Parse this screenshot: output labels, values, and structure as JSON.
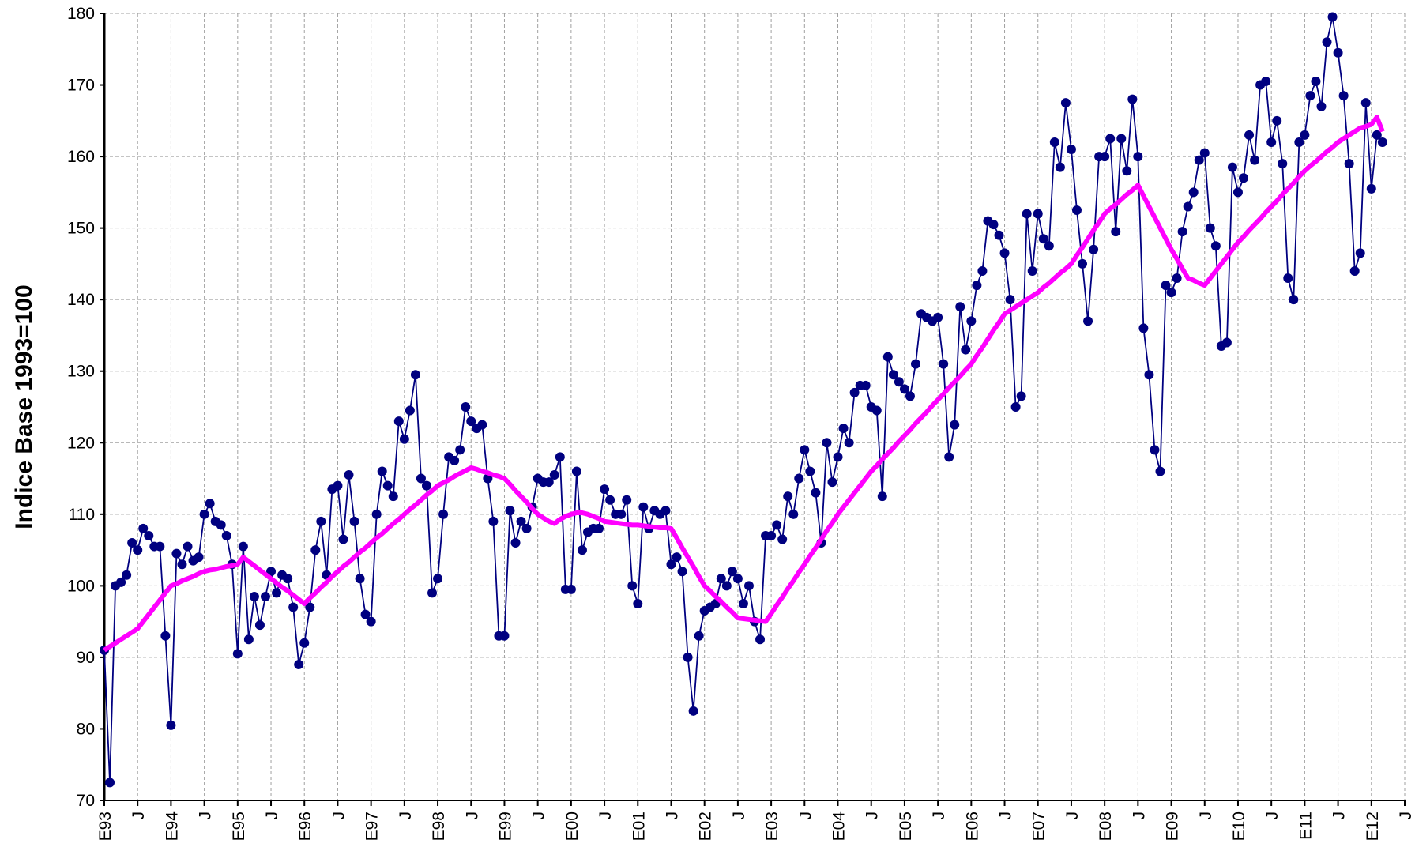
{
  "chart_data": {
    "type": "line",
    "y_label": "Indice Base 1993=100",
    "categories": [
      "E93",
      null,
      null,
      null,
      null,
      null,
      "J",
      null,
      null,
      null,
      null,
      null,
      "E94",
      null,
      null,
      null,
      null,
      null,
      "J",
      null,
      null,
      null,
      null,
      null,
      "E95",
      null,
      null,
      null,
      null,
      null,
      "J",
      null,
      null,
      null,
      null,
      null,
      "E96",
      null,
      null,
      null,
      null,
      null,
      "J",
      null,
      null,
      null,
      null,
      null,
      "E97",
      null,
      null,
      null,
      null,
      null,
      "J",
      null,
      null,
      null,
      null,
      null,
      "E98",
      null,
      null,
      null,
      null,
      null,
      "J",
      null,
      null,
      null,
      null,
      null,
      "E99",
      null,
      null,
      null,
      null,
      null,
      "J",
      null,
      null,
      null,
      null,
      null,
      "E00",
      null,
      null,
      null,
      null,
      null,
      "J",
      null,
      null,
      null,
      null,
      null,
      "E01",
      null,
      null,
      null,
      null,
      null,
      "J",
      null,
      null,
      null,
      null,
      null,
      "E02",
      null,
      null,
      null,
      null,
      null,
      "J",
      null,
      null,
      null,
      null,
      null,
      "E03",
      null,
      null,
      null,
      null,
      null,
      "J",
      null,
      null,
      null,
      null,
      null,
      "E04",
      null,
      null,
      null,
      null,
      null,
      "J",
      null,
      null,
      null,
      null,
      null,
      "E05",
      null,
      null,
      null,
      null,
      null,
      "J",
      null,
      null,
      null,
      null,
      null,
      "E06",
      null,
      null,
      null,
      null,
      null,
      "J",
      null,
      null,
      null,
      null,
      null,
      "E07",
      null,
      null,
      null,
      null,
      null,
      "J",
      null,
      null,
      null,
      null,
      null,
      "E08",
      null,
      null,
      null,
      null,
      null,
      "J",
      null,
      null,
      null,
      null,
      null,
      "E09",
      null,
      null,
      null,
      null,
      null,
      "J",
      null,
      null,
      null,
      null,
      null,
      "E10",
      null,
      null,
      null,
      null,
      null,
      "J",
      null,
      null,
      null,
      null,
      null,
      "E11",
      null,
      null,
      null,
      null,
      null,
      "J",
      null,
      null,
      null,
      null,
      null,
      "E12",
      null,
      null,
      null,
      null,
      null,
      "J"
    ],
    "series": [
      {
        "color": "#000080",
        "markers": true,
        "values": [
          91,
          72.5,
          100,
          100.5,
          101.5,
          106,
          105,
          108,
          107,
          105.5,
          105.5,
          93,
          80.5,
          104.5,
          103,
          105.5,
          103.5,
          104,
          110,
          111.5,
          109,
          108.5,
          107,
          103,
          90.5,
          105.5,
          92.5,
          98.5,
          94.5,
          98.5,
          102,
          99,
          101.5,
          101,
          97,
          89,
          92,
          97,
          105,
          109,
          101.5,
          113.5,
          114,
          106.5,
          115.5,
          109,
          101,
          96,
          95,
          110,
          116,
          114,
          112.5,
          123,
          120.5,
          124.5,
          129.5,
          115,
          114,
          99,
          101,
          110,
          118,
          117.5,
          119,
          125,
          123,
          122,
          122.5,
          115,
          109,
          93,
          93,
          110.5,
          106,
          109,
          108,
          111,
          115,
          114.5,
          114.5,
          115.5,
          118,
          99.5,
          99.5,
          116,
          105,
          107.5,
          108,
          108,
          113.5,
          112,
          110,
          110,
          112,
          100,
          97.5,
          111,
          108,
          110.5,
          110,
          110.5,
          103,
          104,
          102,
          90,
          82.5,
          93,
          96.5,
          97,
          97.5,
          101,
          100,
          102,
          101,
          97.5,
          100,
          95,
          92.5,
          107,
          107,
          108.5,
          106.5,
          112.5,
          110,
          115,
          119,
          116,
          113,
          106,
          120,
          114.5,
          118,
          122,
          120,
          127,
          128,
          128,
          125,
          124.5,
          112.5,
          132,
          129.5,
          128.5,
          127.5,
          126.5,
          131,
          138,
          137.5,
          137,
          137.5,
          131,
          118,
          122.5,
          139,
          133,
          137,
          142,
          144,
          151,
          150.5,
          149,
          146.5,
          140,
          125,
          126.5,
          152,
          144,
          152,
          148.5,
          147.5,
          162,
          158.5,
          167.5,
          161,
          152.5,
          145,
          137,
          147,
          160,
          160,
          162.5,
          149.5,
          162.5,
          158,
          168,
          160,
          136,
          129.5,
          119,
          116,
          142,
          141,
          143,
          149.5,
          153,
          155,
          159.5,
          160.5,
          150,
          147.5,
          133.5,
          134,
          158.5,
          155,
          157,
          163,
          159.5,
          170,
          170.5,
          162,
          165,
          159,
          143,
          140,
          162,
          163,
          168.5,
          170.5,
          167,
          176,
          179.5,
          174.5,
          168.5,
          159,
          144,
          146.5,
          167.5,
          155.5,
          163,
          162,
          null,
          null,
          null,
          null
        ]
      },
      {
        "color": "#ff00ff",
        "markers": false,
        "values": [
          91,
          91.5,
          92,
          92.5,
          93,
          93.5,
          94,
          95,
          96,
          97,
          98,
          99,
          100,
          100.3,
          100.7,
          101,
          101.3,
          101.7,
          102,
          102.2,
          102.3,
          102.5,
          102.7,
          102.8,
          103,
          104,
          103.4,
          102.8,
          102.2,
          101.6,
          101,
          100.4,
          99.8,
          99.3,
          98.7,
          98.1,
          97.5,
          98.3,
          99,
          99.8,
          100.5,
          101.3,
          102,
          102.7,
          103.3,
          104,
          104.7,
          105.3,
          106,
          106.7,
          107.3,
          108,
          108.7,
          109.3,
          110,
          110.7,
          111.3,
          112,
          112.7,
          113.3,
          114,
          114.4,
          114.8,
          115.3,
          115.7,
          116.1,
          116.5,
          116.3,
          116,
          115.8,
          115.5,
          115.3,
          115,
          114.2,
          113.3,
          112.5,
          111.7,
          110.8,
          110,
          109.5,
          109,
          108.7,
          109.3,
          109.7,
          110,
          110.2,
          110.2,
          110,
          109.7,
          109.4,
          109,
          108.9,
          108.8,
          108.7,
          108.6,
          108.5,
          108.5,
          108.4,
          108.3,
          108.2,
          108.1,
          108.1,
          108,
          106.7,
          105.3,
          104,
          102.7,
          101.3,
          100,
          99.3,
          98.5,
          97.8,
          97,
          96.3,
          95.5,
          95.4,
          95.3,
          95.2,
          95.1,
          95,
          96.1,
          97.3,
          98.4,
          99.6,
          100.7,
          101.9,
          103,
          104.2,
          105.3,
          106.5,
          107.7,
          108.8,
          110,
          111,
          112,
          113,
          114,
          115,
          116,
          116.8,
          117.7,
          118.5,
          119.3,
          120.2,
          121,
          121.8,
          122.7,
          123.5,
          124.3,
          125.2,
          126,
          126.8,
          127.7,
          128.5,
          129.3,
          130.2,
          131,
          132.2,
          133.3,
          134.5,
          135.7,
          136.8,
          138,
          138.5,
          139,
          139.5,
          140,
          140.5,
          141,
          141.7,
          142.3,
          143,
          143.7,
          144.3,
          145,
          146.2,
          147.3,
          148.5,
          149.7,
          150.8,
          152,
          152.7,
          153.3,
          154,
          154.7,
          155.3,
          156,
          154.5,
          153,
          151.5,
          150,
          148.5,
          147,
          145.7,
          144.3,
          143,
          142.7,
          142.3,
          142,
          143,
          144,
          145,
          146,
          147,
          148,
          148.8,
          149.7,
          150.5,
          151.3,
          152.2,
          153,
          153.8,
          154.7,
          155.5,
          156.3,
          157.2,
          158,
          158.7,
          159.3,
          160,
          160.7,
          161.3,
          162,
          162.5,
          163,
          163.5,
          164,
          164.2,
          164.5,
          165.5,
          163.5,
          null,
          null,
          null,
          null
        ]
      }
    ],
    "ylim": [
      70,
      180
    ],
    "yticks": [
      70,
      80,
      90,
      100,
      110,
      120,
      130,
      140,
      150,
      160,
      170,
      180
    ],
    "grid": true
  }
}
